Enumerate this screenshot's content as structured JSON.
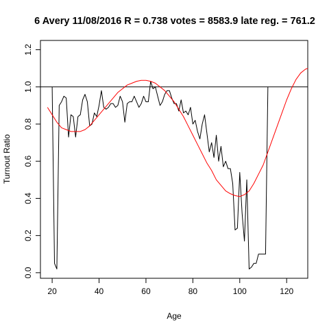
{
  "chart_data": {
    "type": "line",
    "title": "6 Avery 11/08/2016 R = 0.738 votes = 8583.9 late reg. = 761.2",
    "xlabel": "Age",
    "ylabel": "Turnout Ratio",
    "xlim": [
      15,
      129
    ],
    "ylim": [
      -0.03,
      1.25
    ],
    "xticks": [
      20,
      40,
      60,
      80,
      100,
      120
    ],
    "yticks": [
      0.0,
      0.2,
      0.4,
      0.6,
      0.8,
      1.0,
      1.2
    ],
    "xtick_labels": [
      "20",
      "40",
      "60",
      "80",
      "100",
      "120"
    ],
    "ytick_labels": [
      "0.0",
      "0.2",
      "0.4",
      "0.6",
      "0.8",
      "1.0",
      "1.2"
    ],
    "reference_line": {
      "y": 1.0,
      "color": "#000000"
    },
    "grid": false,
    "series": [
      {
        "color": "#000000",
        "points": [
          [
            20,
            1.0
          ],
          [
            21,
            0.05
          ],
          [
            22,
            0.02
          ],
          [
            23,
            0.9
          ],
          [
            24,
            0.92
          ],
          [
            25,
            0.95
          ],
          [
            26,
            0.94
          ],
          [
            27,
            0.73
          ],
          [
            28,
            0.85
          ],
          [
            29,
            0.84
          ],
          [
            30,
            0.73
          ],
          [
            31,
            0.84
          ],
          [
            32,
            0.85
          ],
          [
            33,
            0.93
          ],
          [
            34,
            0.96
          ],
          [
            35,
            0.92
          ],
          [
            36,
            0.79
          ],
          [
            37,
            0.8
          ],
          [
            38,
            0.86
          ],
          [
            39,
            0.84
          ],
          [
            40,
            0.9
          ],
          [
            41,
            0.98
          ],
          [
            42,
            0.89
          ],
          [
            43,
            0.88
          ],
          [
            44,
            0.89
          ],
          [
            45,
            0.91
          ],
          [
            46,
            0.91
          ],
          [
            47,
            0.89
          ],
          [
            48,
            0.9
          ],
          [
            49,
            0.95
          ],
          [
            50,
            0.92
          ],
          [
            51,
            0.81
          ],
          [
            52,
            0.91
          ],
          [
            53,
            0.92
          ],
          [
            54,
            0.92
          ],
          [
            55,
            0.95
          ],
          [
            56,
            0.92
          ],
          [
            57,
            0.89
          ],
          [
            58,
            0.91
          ],
          [
            59,
            0.95
          ],
          [
            60,
            0.92
          ],
          [
            61,
            0.92
          ],
          [
            62,
            1.03
          ],
          [
            63,
            0.99
          ],
          [
            64,
            1.0
          ],
          [
            65,
            0.95
          ],
          [
            66,
            0.9
          ],
          [
            67,
            0.92
          ],
          [
            68,
            0.96
          ],
          [
            69,
            0.98
          ],
          [
            70,
            0.98
          ],
          [
            71,
            0.94
          ],
          [
            72,
            0.91
          ],
          [
            73,
            0.91
          ],
          [
            74,
            0.87
          ],
          [
            75,
            0.93
          ],
          [
            76,
            0.86
          ],
          [
            77,
            0.87
          ],
          [
            78,
            0.85
          ],
          [
            79,
            0.89
          ],
          [
            80,
            0.8
          ],
          [
            81,
            0.82
          ],
          [
            82,
            0.76
          ],
          [
            83,
            0.72
          ],
          [
            84,
            0.8
          ],
          [
            85,
            0.85
          ],
          [
            86,
            0.75
          ],
          [
            87,
            0.65
          ],
          [
            88,
            0.7
          ],
          [
            89,
            0.62
          ],
          [
            90,
            0.74
          ],
          [
            91,
            0.6
          ],
          [
            92,
            0.68
          ],
          [
            93,
            0.57
          ],
          [
            94,
            0.6
          ],
          [
            95,
            0.56
          ],
          [
            96,
            0.56
          ],
          [
            97,
            0.48
          ],
          [
            98,
            0.23
          ],
          [
            99,
            0.24
          ],
          [
            100,
            0.54
          ],
          [
            101,
            0.32
          ],
          [
            102,
            0.17
          ],
          [
            103,
            0.5
          ],
          [
            104,
            0.02
          ],
          [
            105,
            0.03
          ],
          [
            106,
            0.05
          ],
          [
            107,
            0.05
          ],
          [
            108,
            0.1
          ],
          [
            109,
            0.1
          ],
          [
            110,
            0.1
          ],
          [
            111,
            0.1
          ],
          [
            112,
            1.0
          ]
        ]
      },
      {
        "color": "#ff0000",
        "points": [
          [
            18,
            0.89
          ],
          [
            20,
            0.85
          ],
          [
            22,
            0.81
          ],
          [
            24,
            0.78
          ],
          [
            26,
            0.77
          ],
          [
            28,
            0.76
          ],
          [
            30,
            0.76
          ],
          [
            32,
            0.76
          ],
          [
            34,
            0.77
          ],
          [
            36,
            0.79
          ],
          [
            38,
            0.82
          ],
          [
            40,
            0.85
          ],
          [
            42,
            0.88
          ],
          [
            44,
            0.91
          ],
          [
            46,
            0.94
          ],
          [
            48,
            0.97
          ],
          [
            50,
            0.99
          ],
          [
            52,
            1.01
          ],
          [
            54,
            1.02
          ],
          [
            56,
            1.03
          ],
          [
            58,
            1.035
          ],
          [
            60,
            1.035
          ],
          [
            62,
            1.03
          ],
          [
            64,
            1.02
          ],
          [
            66,
            1.0
          ],
          [
            68,
            0.98
          ],
          [
            70,
            0.95
          ],
          [
            72,
            0.92
          ],
          [
            74,
            0.88
          ],
          [
            76,
            0.84
          ],
          [
            78,
            0.79
          ],
          [
            80,
            0.74
          ],
          [
            82,
            0.69
          ],
          [
            84,
            0.64
          ],
          [
            86,
            0.59
          ],
          [
            88,
            0.55
          ],
          [
            90,
            0.5
          ],
          [
            92,
            0.47
          ],
          [
            94,
            0.44
          ],
          [
            96,
            0.425
          ],
          [
            98,
            0.415
          ],
          [
            100,
            0.41
          ],
          [
            102,
            0.42
          ],
          [
            104,
            0.44
          ],
          [
            106,
            0.48
          ],
          [
            108,
            0.53
          ],
          [
            110,
            0.58
          ],
          [
            112,
            0.65
          ],
          [
            114,
            0.72
          ],
          [
            116,
            0.79
          ],
          [
            118,
            0.86
          ],
          [
            120,
            0.93
          ],
          [
            122,
            0.99
          ],
          [
            124,
            1.04
          ],
          [
            126,
            1.075
          ],
          [
            128,
            1.095
          ],
          [
            129,
            1.1
          ]
        ]
      }
    ]
  }
}
